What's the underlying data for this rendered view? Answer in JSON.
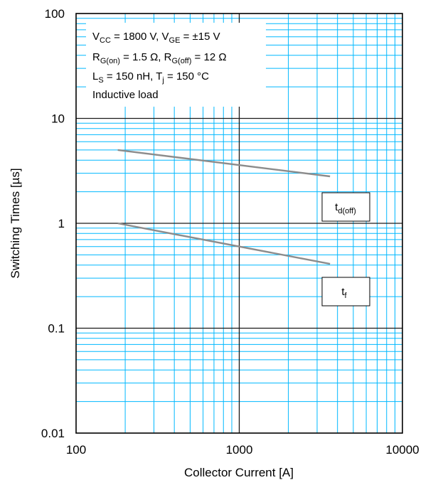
{
  "chart_data": {
    "type": "line",
    "title": "",
    "xlabel": "Collector Current [A]",
    "ylabel": "Switching Times [µs]",
    "x_scale": "log",
    "y_scale": "log",
    "xlim": [
      100,
      10000
    ],
    "ylim": [
      0.01,
      100
    ],
    "x_ticks": [
      "100",
      "1000",
      "10000"
    ],
    "y_ticks": [
      "0.01",
      "0.1",
      "1",
      "10",
      "100"
    ],
    "grid": true,
    "grid_color": "#00b8ff",
    "major_grid_color": "#1a1a1a",
    "series_color": "#8c8c8c",
    "series": [
      {
        "name": "t_d(off)",
        "x": [
          180,
          3600
        ],
        "y": [
          5.0,
          2.8
        ]
      },
      {
        "name": "t_f",
        "x": [
          180,
          3600
        ],
        "y": [
          1.0,
          0.41
        ]
      }
    ],
    "conditions": [
      "V_CC = 1800 V, V_GE = ±15 V",
      "R_G(on) = 1.5 Ω, R_G(off) = 12 Ω",
      "L_S = 150 nH, T_j = 150 °C",
      "Inductive load"
    ]
  }
}
